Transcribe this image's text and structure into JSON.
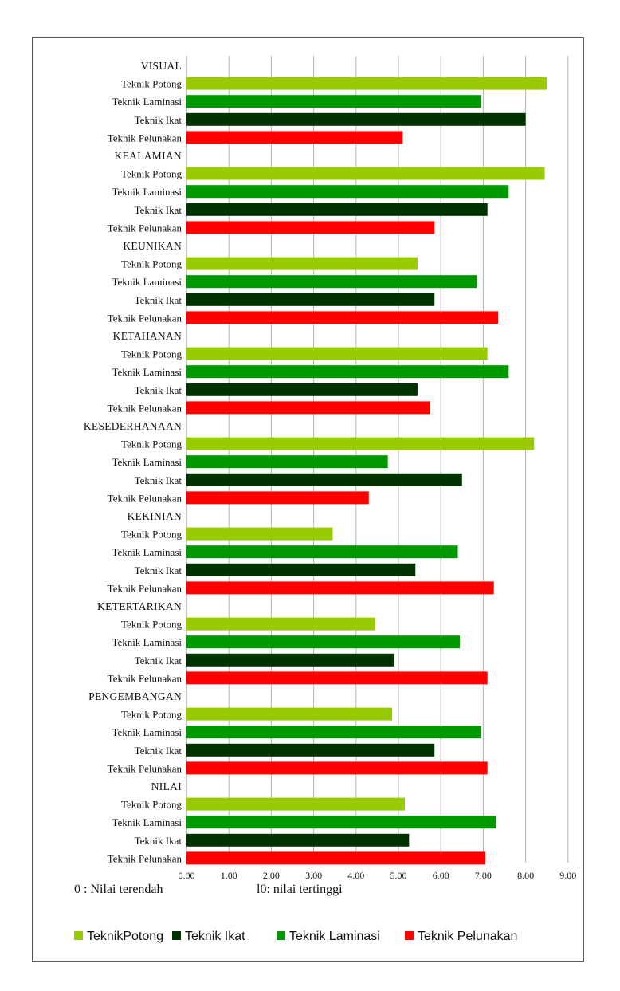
{
  "chart_data": {
    "type": "bar",
    "orientation": "horizontal",
    "xlim": [
      0,
      9
    ],
    "x_ticks": [
      "0.00",
      "1.00",
      "2.00",
      "3.00",
      "4.00",
      "5.00",
      "6.00",
      "7.00",
      "8.00",
      "9.00"
    ],
    "grid": "vertical",
    "legend_position": "bottom",
    "series_labels": [
      "Teknik Potong",
      "Teknik Laminasi",
      "Teknik Ikat",
      "Teknik Pelunakan"
    ],
    "legend": [
      {
        "name": "TeknikPotong",
        "color": "#99cc00"
      },
      {
        "name": "Teknik Ikat",
        "color": "#003300"
      },
      {
        "name": "Teknik Laminasi",
        "color": "#009900"
      },
      {
        "name": "Teknik Pelunakan",
        "color": "#ff0000"
      }
    ],
    "series_colors": [
      "#99cc00",
      "#009900",
      "#003300",
      "#ff0000"
    ],
    "groups": [
      {
        "name": "VISUAL",
        "values": [
          8.5,
          6.95,
          8.0,
          5.1
        ]
      },
      {
        "name": "KEALAMIAN",
        "values": [
          8.45,
          7.6,
          7.1,
          5.85
        ]
      },
      {
        "name": "KEUNIKAN",
        "values": [
          5.45,
          6.85,
          5.85,
          7.35
        ]
      },
      {
        "name": "KETAHANAN",
        "values": [
          7.1,
          7.6,
          5.45,
          5.75
        ]
      },
      {
        "name": "KESEDERHANAAN",
        "values": [
          8.2,
          4.75,
          6.5,
          4.3
        ]
      },
      {
        "name": "KEKINIAN",
        "values": [
          3.45,
          6.4,
          5.4,
          7.25
        ]
      },
      {
        "name": "KETERTARIKAN",
        "values": [
          4.45,
          6.45,
          4.9,
          7.1
        ]
      },
      {
        "name": "PENGEMBANGAN",
        "values": [
          4.85,
          6.95,
          5.85,
          7.1
        ]
      },
      {
        "name": "NILAI",
        "values": [
          5.15,
          7.3,
          5.25,
          7.05
        ]
      }
    ],
    "notes": {
      "low": "0  : Nilai terendah",
      "high": "l0: nilai tertinggi"
    }
  }
}
